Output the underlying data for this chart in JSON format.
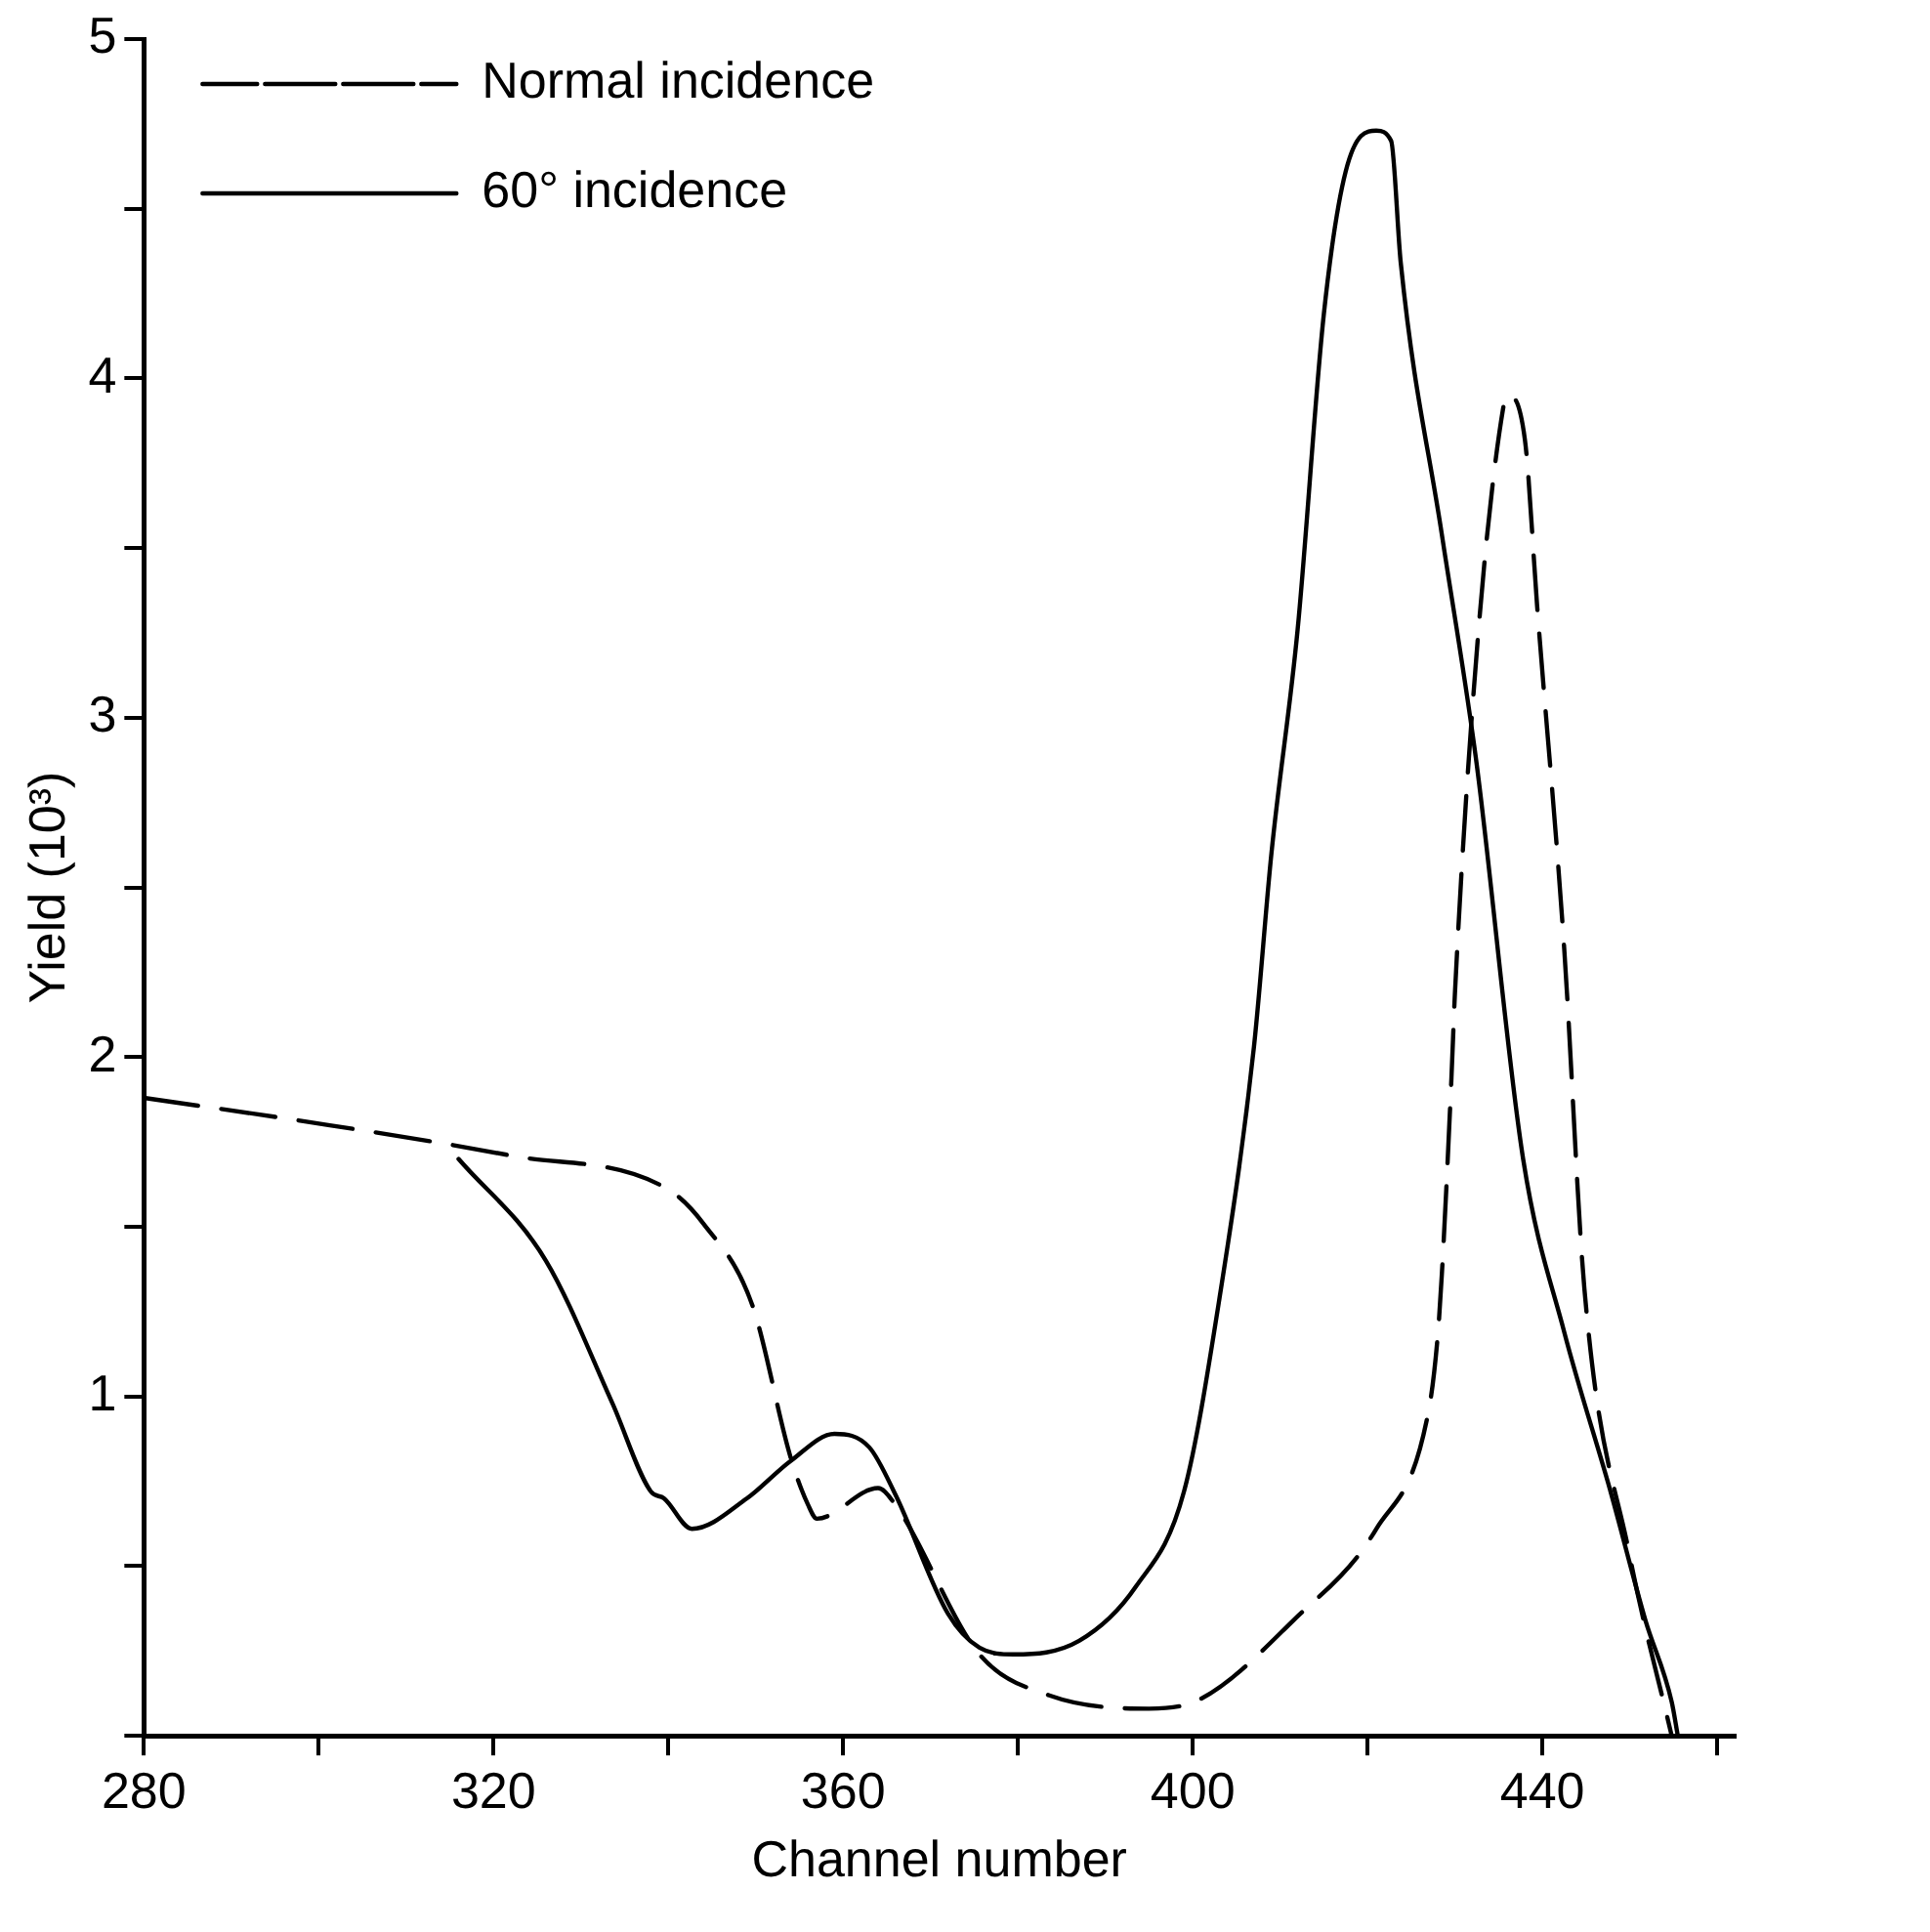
{
  "chart_data": {
    "type": "line",
    "xlabel": "Channel number",
    "ylabel": "Yield (10³)",
    "xlim": [
      280,
      462
    ],
    "xticks": [
      280,
      {
        "value": 300,
        "label": null
      },
      320,
      {
        "value": 340,
        "label": null
      },
      360,
      {
        "value": 380,
        "label": null
      },
      400,
      {
        "value": 420,
        "label": null
      },
      440,
      {
        "value": 460,
        "label": null
      }
    ],
    "ylim": [
      0,
      5
    ],
    "yticks": [
      {
        "value": 0,
        "label": null
      },
      {
        "value": 0.5,
        "label": null
      },
      1,
      {
        "value": 1.5,
        "label": null
      },
      2,
      {
        "value": 2.5,
        "label": null
      },
      3,
      {
        "value": 3.5,
        "label": null
      },
      4,
      {
        "value": 4.5,
        "label": null
      },
      5
    ],
    "grid": false,
    "legend": "top left",
    "marker": "none",
    "series": [
      {
        "name": "Normal incidence",
        "color": "#000000",
        "line_style": "dashed",
        "x": [
          280,
          298.6,
          322,
          340,
          344,
          349.6,
          354,
          356,
          357,
          364,
          366,
          375.6,
          383.5,
          395,
          401,
          411.5,
          421,
          427,
          428,
          428.5,
          429.6,
          430,
          432.7,
          435.5,
          436,
          438,
          439.4,
          442.5,
          444.8,
          450,
          454.8
        ],
        "values": [
          1.88,
          1.81,
          1.71,
          1.61,
          1.51,
          1.27,
          0.82,
          0.68,
          0.64,
          0.73,
          0.68,
          0.24,
          0.12,
          0.08,
          0.11,
          0.34,
          0.61,
          0.96,
          1.17,
          1.36,
          1.94,
          2.19,
          3.26,
          3.91,
          3.95,
          3.82,
          3.33,
          2.32,
          1.32,
          0.53,
          0
        ]
      },
      {
        "name": "60° incidence",
        "color": "#000000",
        "line_style": "solid",
        "x": [
          316,
          326,
          333.6,
          338,
          339.5,
          342.7,
          349,
          354,
          359,
          363,
          366,
          372,
          375.6,
          379.5,
          387,
          393.5,
          399,
          403,
          407,
          409,
          412,
          415,
          417.5,
          421,
          422.7,
          423.8,
          428.5,
          432.4,
          437.8,
          442.5,
          447.8,
          451.8,
          454.8,
          455.5
        ],
        "values": [
          1.7,
          1.4,
          0.98,
          0.72,
          0.7,
          0.61,
          0.7,
          0.81,
          0.89,
          0.85,
          0.71,
          0.36,
          0.26,
          0.24,
          0.28,
          0.44,
          0.72,
          1.28,
          2.03,
          2.6,
          3.26,
          4.19,
          4.61,
          4.73,
          4.7,
          4.34,
          3.54,
          2.88,
          1.7,
          1.19,
          0.72,
          0.34,
          0.1,
          0
        ]
      }
    ]
  }
}
